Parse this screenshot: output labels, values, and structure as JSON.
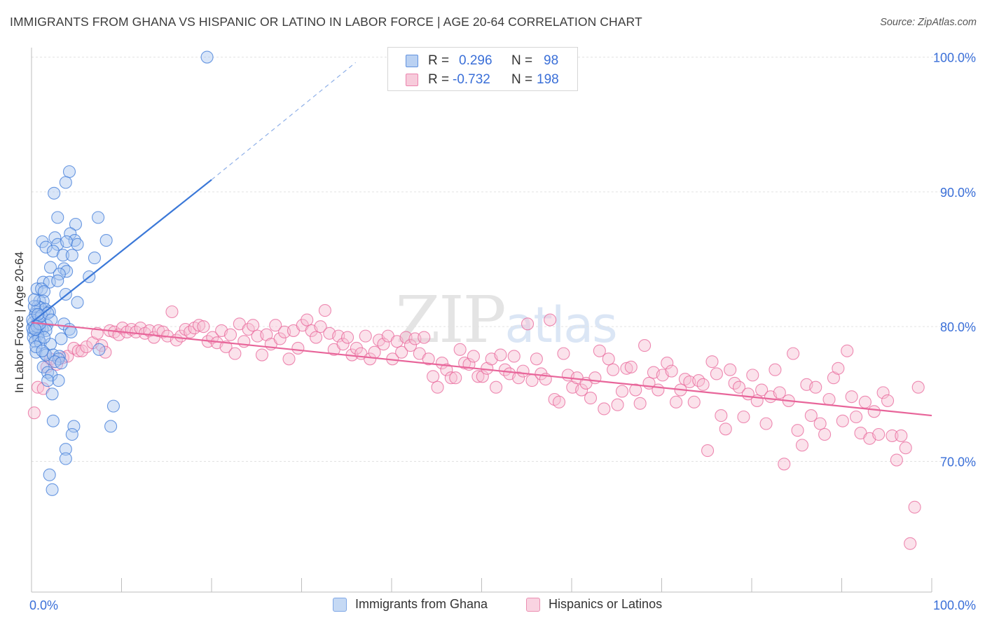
{
  "title": "IMMIGRANTS FROM GHANA VS HISPANIC OR LATINO IN LABOR FORCE | AGE 20-64 CORRELATION CHART",
  "source": "Source: ZipAtlas.com",
  "watermark": "ZIPatlas",
  "legend_top": {
    "rows": [
      {
        "r_label": "R =",
        "r_value": "0.296",
        "n_label": "N =",
        "n_value": "98"
      },
      {
        "r_label": "R =",
        "r_value": "-0.732",
        "n_label": "N =",
        "n_value": "198"
      }
    ]
  },
  "colors": {
    "blue": "#3b78d8",
    "blue_fill": "#a9c6ef",
    "pink": "#e8659a",
    "pink_fill": "#f6bfd3",
    "axis_text": "#3a6fd8",
    "grid": "#e2e2e2"
  },
  "chart_data": {
    "type": "scatter",
    "title": "IMMIGRANTS FROM GHANA VS HISPANIC OR LATINO IN LABOR FORCE | AGE 20-64 CORRELATION CHART",
    "xlabel": "",
    "ylabel": "In Labor Force | Age 20-64",
    "x_tick_labels": [
      "0.0%",
      "100.0%"
    ],
    "y_tick_labels": [
      "100.0%",
      "90.0%",
      "80.0%",
      "70.0%"
    ],
    "y_ticks": [
      100,
      90,
      80,
      70
    ],
    "xlim": [
      0,
      100
    ],
    "ylim": [
      60.3,
      100.6
    ],
    "grid": true,
    "legend_position": "bottom",
    "series": [
      {
        "name": "Immigrants from Ghana",
        "color": "#3b78d8",
        "r": 0.296,
        "n": 98,
        "trend": {
          "x0": 0,
          "y0": 80.3,
          "x1": 20,
          "y1": 90.9,
          "dash_x1": 36,
          "dash_y1": 99.6
        },
        "points": [
          [
            19.5,
            100
          ],
          [
            4.2,
            91.5
          ],
          [
            3.8,
            90.7
          ],
          [
            2.5,
            89.9
          ],
          [
            2.9,
            88.1
          ],
          [
            7.4,
            88.1
          ],
          [
            4.9,
            87.6
          ],
          [
            1.2,
            86.3
          ],
          [
            2.6,
            86.6
          ],
          [
            4.3,
            86.9
          ],
          [
            8.3,
            86.4
          ],
          [
            4.8,
            86.4
          ],
          [
            1.6,
            85.9
          ],
          [
            2.9,
            86.1
          ],
          [
            3.9,
            86.3
          ],
          [
            5.1,
            86.1
          ],
          [
            2.4,
            85.6
          ],
          [
            3.5,
            85.3
          ],
          [
            4.5,
            85.3
          ],
          [
            7.0,
            85.1
          ],
          [
            2.1,
            84.4
          ],
          [
            3.6,
            84.3
          ],
          [
            3.9,
            84.1
          ],
          [
            3.1,
            83.9
          ],
          [
            6.4,
            83.7
          ],
          [
            1.3,
            83.3
          ],
          [
            2.0,
            83.3
          ],
          [
            2.9,
            83.4
          ],
          [
            0.6,
            82.8
          ],
          [
            1.1,
            82.8
          ],
          [
            1.4,
            82.6
          ],
          [
            3.8,
            82.4
          ],
          [
            0.9,
            81.9
          ],
          [
            1.3,
            81.9
          ],
          [
            5.1,
            81.8
          ],
          [
            0.7,
            81.5
          ],
          [
            1.0,
            81.4
          ],
          [
            1.5,
            81.3
          ],
          [
            0.5,
            81.1
          ],
          [
            2.0,
            81.1
          ],
          [
            0.4,
            80.9
          ],
          [
            0.8,
            80.6
          ],
          [
            0.2,
            80.3
          ],
          [
            0.6,
            80.2
          ],
          [
            1.7,
            80.1
          ],
          [
            3.6,
            80.2
          ],
          [
            0.3,
            80.0
          ],
          [
            0.9,
            79.9
          ],
          [
            1.2,
            79.8
          ],
          [
            1.6,
            79.7
          ],
          [
            4.2,
            79.8
          ],
          [
            0.2,
            79.6
          ],
          [
            0.7,
            79.4
          ],
          [
            4.4,
            79.6
          ],
          [
            0.2,
            79.2
          ],
          [
            0.8,
            79.1
          ],
          [
            3.3,
            79.1
          ],
          [
            0.4,
            78.9
          ],
          [
            1.0,
            78.8
          ],
          [
            2.1,
            78.7
          ],
          [
            0.5,
            78.1
          ],
          [
            1.5,
            78.0
          ],
          [
            1.6,
            77.9
          ],
          [
            2.4,
            77.9
          ],
          [
            7.5,
            78.3
          ],
          [
            3.1,
            77.8
          ],
          [
            3.0,
            77.6
          ],
          [
            2.6,
            77.4
          ],
          [
            3.3,
            77.3
          ],
          [
            1.3,
            77.0
          ],
          [
            1.8,
            76.6
          ],
          [
            2.2,
            76.4
          ],
          [
            1.8,
            76.0
          ],
          [
            3.0,
            76.0
          ],
          [
            2.3,
            75.0
          ],
          [
            9.1,
            74.1
          ],
          [
            2.4,
            73.0
          ],
          [
            4.7,
            72.6
          ],
          [
            8.8,
            72.6
          ],
          [
            4.5,
            72.0
          ],
          [
            3.8,
            70.9
          ],
          [
            3.8,
            70.2
          ],
          [
            2.0,
            69.0
          ],
          [
            2.3,
            67.9
          ],
          [
            0.1,
            79.9
          ],
          [
            0.1,
            80.5
          ],
          [
            0.3,
            81.5
          ],
          [
            0.3,
            82.0
          ],
          [
            0.5,
            78.5
          ],
          [
            0.6,
            80.0
          ],
          [
            0.9,
            80.2
          ],
          [
            1.1,
            80.8
          ],
          [
            1.4,
            79.2
          ],
          [
            1.8,
            81.0
          ],
          [
            2.2,
            80.5
          ],
          [
            1.2,
            78.2
          ],
          [
            0.4,
            79.8
          ],
          [
            0.7,
            80.9
          ]
        ]
      },
      {
        "name": "Hispanics or Latinos",
        "color": "#e8659a",
        "r": -0.732,
        "n": 198,
        "trend": {
          "x0": 0,
          "y0": 80.3,
          "x1": 100,
          "y1": 73.4
        },
        "points": [
          [
            0.3,
            73.6
          ],
          [
            0.7,
            75.5
          ],
          [
            1.3,
            75.4
          ],
          [
            1.7,
            77.0
          ],
          [
            2.1,
            77.6
          ],
          [
            2.8,
            77.2
          ],
          [
            3.5,
            77.7
          ],
          [
            4.0,
            77.8
          ],
          [
            4.7,
            78.4
          ],
          [
            5.2,
            78.2
          ],
          [
            5.6,
            78.2
          ],
          [
            6.1,
            78.5
          ],
          [
            6.8,
            78.8
          ],
          [
            7.3,
            79.5
          ],
          [
            7.8,
            78.6
          ],
          [
            8.2,
            78.1
          ],
          [
            8.7,
            79.7
          ],
          [
            9.2,
            79.6
          ],
          [
            9.7,
            79.4
          ],
          [
            10.1,
            79.9
          ],
          [
            10.6,
            79.6
          ],
          [
            11.1,
            79.8
          ],
          [
            11.6,
            79.6
          ],
          [
            12.1,
            79.9
          ],
          [
            12.6,
            79.5
          ],
          [
            13.1,
            79.7
          ],
          [
            13.6,
            79.2
          ],
          [
            14.1,
            79.7
          ],
          [
            14.6,
            79.6
          ],
          [
            15.1,
            79.3
          ],
          [
            15.6,
            81.1
          ],
          [
            16.1,
            79.0
          ],
          [
            16.6,
            79.3
          ],
          [
            17.1,
            79.8
          ],
          [
            17.6,
            79.6
          ],
          [
            18.1,
            79.9
          ],
          [
            18.6,
            80.1
          ],
          [
            19.1,
            80.0
          ],
          [
            19.6,
            78.9
          ],
          [
            20.1,
            79.2
          ],
          [
            20.6,
            78.8
          ],
          [
            21.1,
            79.7
          ],
          [
            21.6,
            78.5
          ],
          [
            22.1,
            79.4
          ],
          [
            22.6,
            78.0
          ],
          [
            23.1,
            80.2
          ],
          [
            23.6,
            78.9
          ],
          [
            24.1,
            79.8
          ],
          [
            24.6,
            80.1
          ],
          [
            25.1,
            79.3
          ],
          [
            25.6,
            77.9
          ],
          [
            26.1,
            79.4
          ],
          [
            26.6,
            78.7
          ],
          [
            27.1,
            80.1
          ],
          [
            27.6,
            79.1
          ],
          [
            28.1,
            79.6
          ],
          [
            28.6,
            77.6
          ],
          [
            29.1,
            79.7
          ],
          [
            29.6,
            78.4
          ],
          [
            30.1,
            80.1
          ],
          [
            30.6,
            80.5
          ],
          [
            31.1,
            79.7
          ],
          [
            31.6,
            79.2
          ],
          [
            32.1,
            80.0
          ],
          [
            32.6,
            81.2
          ],
          [
            33.1,
            79.5
          ],
          [
            33.6,
            78.3
          ],
          [
            34.1,
            79.3
          ],
          [
            34.6,
            78.7
          ],
          [
            35.1,
            79.2
          ],
          [
            35.6,
            77.9
          ],
          [
            36.1,
            78.4
          ],
          [
            36.6,
            78.0
          ],
          [
            37.1,
            79.3
          ],
          [
            37.6,
            77.6
          ],
          [
            38.1,
            78.1
          ],
          [
            38.6,
            79.0
          ],
          [
            39.1,
            78.7
          ],
          [
            39.6,
            79.3
          ],
          [
            40.1,
            77.6
          ],
          [
            40.6,
            78.9
          ],
          [
            41.1,
            78.1
          ],
          [
            41.6,
            79.2
          ],
          [
            42.1,
            78.6
          ],
          [
            42.6,
            79.1
          ],
          [
            43.1,
            78.0
          ],
          [
            43.6,
            79.2
          ],
          [
            44.1,
            77.6
          ],
          [
            44.6,
            76.3
          ],
          [
            45.1,
            75.5
          ],
          [
            45.6,
            77.3
          ],
          [
            46.1,
            76.8
          ],
          [
            46.6,
            76.2
          ],
          [
            47.1,
            76.2
          ],
          [
            47.6,
            78.3
          ],
          [
            48.1,
            77.3
          ],
          [
            48.6,
            77.2
          ],
          [
            49.1,
            77.8
          ],
          [
            49.6,
            76.3
          ],
          [
            50.1,
            76.3
          ],
          [
            50.6,
            76.9
          ],
          [
            51.1,
            77.6
          ],
          [
            51.6,
            75.5
          ],
          [
            52.1,
            77.9
          ],
          [
            52.6,
            76.8
          ],
          [
            53.1,
            76.5
          ],
          [
            53.6,
            77.8
          ],
          [
            54.1,
            76.2
          ],
          [
            54.6,
            76.7
          ],
          [
            55.1,
            80.2
          ],
          [
            55.6,
            76.0
          ],
          [
            56.1,
            77.6
          ],
          [
            56.6,
            76.5
          ],
          [
            57.1,
            76.1
          ],
          [
            57.6,
            80.5
          ],
          [
            58.1,
            74.6
          ],
          [
            58.6,
            74.4
          ],
          [
            59.1,
            78.0
          ],
          [
            59.6,
            76.4
          ],
          [
            60.1,
            75.5
          ],
          [
            60.6,
            76.2
          ],
          [
            61.1,
            75.3
          ],
          [
            61.6,
            75.8
          ],
          [
            62.1,
            74.7
          ],
          [
            62.6,
            76.2
          ],
          [
            63.1,
            78.2
          ],
          [
            63.6,
            73.9
          ],
          [
            64.1,
            77.6
          ],
          [
            64.6,
            76.8
          ],
          [
            65.1,
            74.2
          ],
          [
            65.6,
            75.2
          ],
          [
            66.1,
            76.9
          ],
          [
            66.6,
            77.0
          ],
          [
            67.1,
            75.3
          ],
          [
            67.6,
            74.3
          ],
          [
            68.1,
            78.6
          ],
          [
            68.6,
            75.8
          ],
          [
            69.1,
            76.6
          ],
          [
            69.6,
            75.3
          ],
          [
            70.1,
            76.4
          ],
          [
            70.6,
            77.3
          ],
          [
            71.1,
            76.7
          ],
          [
            71.6,
            74.4
          ],
          [
            72.1,
            75.3
          ],
          [
            72.6,
            76.1
          ],
          [
            73.1,
            75.9
          ],
          [
            73.6,
            74.4
          ],
          [
            74.1,
            76.0
          ],
          [
            74.6,
            75.7
          ],
          [
            75.1,
            70.8
          ],
          [
            75.6,
            77.4
          ],
          [
            76.1,
            76.5
          ],
          [
            76.6,
            73.4
          ],
          [
            77.1,
            72.4
          ],
          [
            77.6,
            76.8
          ],
          [
            78.1,
            75.8
          ],
          [
            78.6,
            75.5
          ],
          [
            79.1,
            73.3
          ],
          [
            79.6,
            75.0
          ],
          [
            80.1,
            76.4
          ],
          [
            80.6,
            74.5
          ],
          [
            81.1,
            75.3
          ],
          [
            81.6,
            72.8
          ],
          [
            82.1,
            74.8
          ],
          [
            82.6,
            76.8
          ],
          [
            83.1,
            75.1
          ],
          [
            83.6,
            69.8
          ],
          [
            84.1,
            74.5
          ],
          [
            84.6,
            78.0
          ],
          [
            85.1,
            72.3
          ],
          [
            85.6,
            71.2
          ],
          [
            86.1,
            75.7
          ],
          [
            86.6,
            73.4
          ],
          [
            87.1,
            75.5
          ],
          [
            87.6,
            72.8
          ],
          [
            88.1,
            72.0
          ],
          [
            88.6,
            74.6
          ],
          [
            89.1,
            76.2
          ],
          [
            89.6,
            76.9
          ],
          [
            90.1,
            73.0
          ],
          [
            90.6,
            78.2
          ],
          [
            91.1,
            74.8
          ],
          [
            91.6,
            73.3
          ],
          [
            92.1,
            72.1
          ],
          [
            92.6,
            74.4
          ],
          [
            93.1,
            71.7
          ],
          [
            93.6,
            73.7
          ],
          [
            94.1,
            72.0
          ],
          [
            94.6,
            75.1
          ],
          [
            95.1,
            74.5
          ],
          [
            95.6,
            71.9
          ],
          [
            96.1,
            70.1
          ],
          [
            96.6,
            71.9
          ],
          [
            97.1,
            71.0
          ],
          [
            97.6,
            63.9
          ],
          [
            98.1,
            66.6
          ],
          [
            98.5,
            75.5
          ]
        ]
      }
    ]
  },
  "bottom_legend": [
    {
      "label": "Immigrants from Ghana"
    },
    {
      "label": "Hispanics or Latinos"
    }
  ]
}
